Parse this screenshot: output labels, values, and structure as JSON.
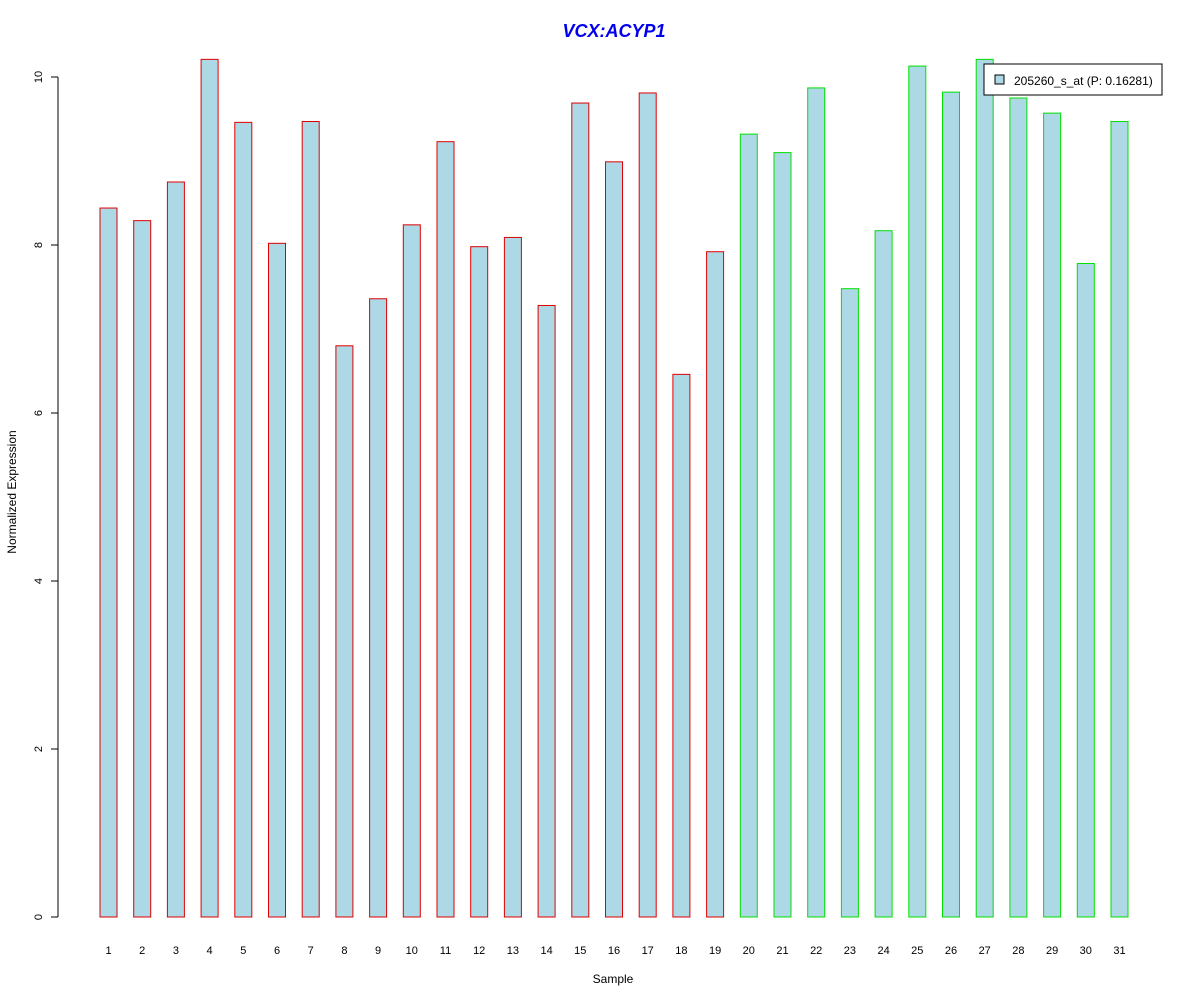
{
  "colors": {
    "title": "#0000ee",
    "bar_fill": "#add8e6",
    "group1_border": "#e00000",
    "group2_border": "#00e000",
    "axis": "#000000"
  },
  "chart_data": {
    "type": "bar",
    "title": "VCX:ACYP1",
    "xlabel": "Sample",
    "ylabel": "Normalized Expression",
    "ylim": [
      0,
      10.2
    ],
    "yticks": [
      "0",
      "2",
      "4",
      "6",
      "8",
      "10"
    ],
    "categories": [
      "1",
      "2",
      "3",
      "4",
      "5",
      "6",
      "7",
      "8",
      "9",
      "10",
      "11",
      "12",
      "13",
      "14",
      "15",
      "16",
      "17",
      "18",
      "19",
      "20",
      "21",
      "22",
      "23",
      "24",
      "25",
      "26",
      "27",
      "28",
      "29",
      "30",
      "31"
    ],
    "series": [
      {
        "name": "205260_s_at (P: 0.16281)",
        "values": [
          8.44,
          8.29,
          8.75,
          10.21,
          9.46,
          8.02,
          9.47,
          6.8,
          7.36,
          8.24,
          9.23,
          7.98,
          8.09,
          7.28,
          9.69,
          8.99,
          9.81,
          6.46,
          7.92,
          9.32,
          9.1,
          9.87,
          7.48,
          8.17,
          10.13,
          9.82,
          10.21,
          9.75,
          9.57,
          7.78,
          9.47
        ]
      }
    ],
    "group": [
      1,
      1,
      1,
      1,
      1,
      1,
      1,
      1,
      1,
      1,
      1,
      1,
      1,
      1,
      1,
      1,
      1,
      1,
      1,
      2,
      2,
      2,
      2,
      2,
      2,
      2,
      2,
      2,
      2,
      2,
      2
    ],
    "legend_position": "top-right",
    "grid": false
  }
}
